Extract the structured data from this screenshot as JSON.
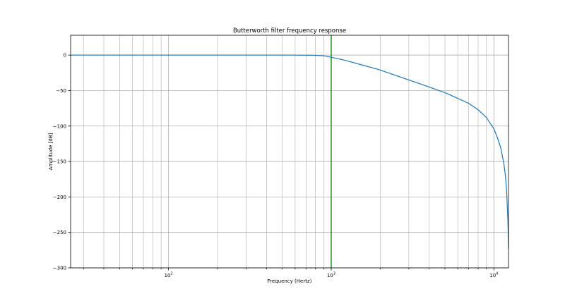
{
  "chart_data": {
    "type": "line",
    "title": "Butterworth filter frequency response",
    "xlabel": "Frequency (Hertz)",
    "ylabel": "Amplitude [dB]",
    "xscale": "log",
    "xlim": [
      25,
      12300
    ],
    "ylim": [
      -300,
      28
    ],
    "x_ticks": [
      {
        "value": 100,
        "base": "10",
        "exp": "2"
      },
      {
        "value": 1000,
        "base": "10",
        "exp": "3"
      },
      {
        "value": 10000,
        "base": "10",
        "exp": "4"
      }
    ],
    "y_ticks": [
      {
        "value": 0,
        "label": "0"
      },
      {
        "value": -50,
        "label": "−50"
      },
      {
        "value": -100,
        "label": "−100"
      },
      {
        "value": -150,
        "label": "−150"
      },
      {
        "value": -200,
        "label": "−200"
      },
      {
        "value": -250,
        "label": "−250"
      },
      {
        "value": -300,
        "label": "−300"
      }
    ],
    "grid": "both",
    "cutoff": {
      "x": 1000,
      "color": "#008000"
    },
    "series": [
      {
        "color": "#1f77b4",
        "x": [
          25,
          50,
          100,
          200,
          400,
          600,
          800,
          900,
          1000,
          1200,
          1500,
          2000,
          3000,
          4000,
          5000,
          6000,
          7000,
          8000,
          9000,
          10000,
          10500,
          11000,
          11500,
          11800,
          12000,
          12200,
          12300
        ],
        "y": [
          0,
          0,
          0,
          0,
          0,
          0,
          -0.3,
          -1,
          -3,
          -7,
          -13,
          -21,
          -35,
          -45,
          -53,
          -61,
          -68,
          -77,
          -88,
          -104,
          -116,
          -130,
          -152,
          -172,
          -195,
          -235,
          -273
        ]
      }
    ]
  }
}
